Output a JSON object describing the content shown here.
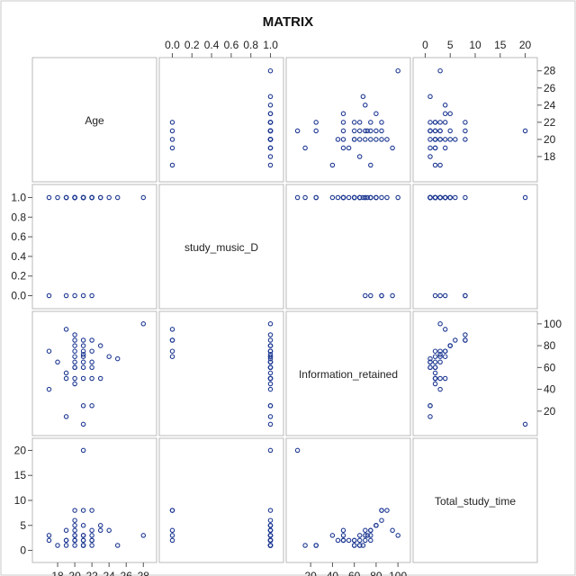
{
  "chart_data": {
    "type": "scatter",
    "subtype": "scatter-matrix",
    "title": "MATRIX",
    "marker_color": "#1f3a93",
    "frame_color": "#b9b9b9",
    "variables": [
      {
        "name": "Age",
        "range": [
          16,
          28.6
        ],
        "ticks": [
          18,
          20,
          22,
          24,
          26,
          28
        ]
      },
      {
        "name": "study_music_D",
        "range": [
          -0.05,
          1.05
        ],
        "ticks": [
          0.0,
          0.2,
          0.4,
          0.6,
          0.8,
          1.0
        ],
        "tick_labels": [
          "0.0",
          "0.2",
          "0.4",
          "0.6",
          "0.8",
          "1.0"
        ]
      },
      {
        "name": "Information_retained",
        "range": [
          5,
          104
        ],
        "ticks": [
          20,
          40,
          60,
          80,
          100
        ]
      },
      {
        "name": "Total_study_time",
        "range": [
          -0.8,
          20.8
        ],
        "ticks": [
          0,
          5,
          10,
          15,
          20
        ]
      }
    ],
    "axes": {
      "top": [
        1,
        3
      ],
      "bottom": [
        0,
        2
      ],
      "left": [
        1,
        3
      ],
      "right": [
        0,
        2
      ]
    },
    "observations": [
      [
        28,
        1,
        100,
        3
      ],
      [
        21,
        1,
        8,
        20
      ],
      [
        17,
        1,
        40,
        3
      ],
      [
        17,
        0,
        75,
        2
      ],
      [
        18,
        1,
        65,
        1
      ],
      [
        19,
        1,
        50,
        2
      ],
      [
        19,
        1,
        15,
        1
      ],
      [
        19,
        0,
        95,
        4
      ],
      [
        20,
        1,
        90,
        8
      ],
      [
        20,
        1,
        85,
        6
      ],
      [
        20,
        1,
        80,
        5
      ],
      [
        20,
        1,
        75,
        4
      ],
      [
        20,
        0,
        70,
        3
      ],
      [
        20,
        1,
        65,
        2
      ],
      [
        20,
        1,
        60,
        1
      ],
      [
        20,
        1,
        50,
        3
      ],
      [
        20,
        1,
        45,
        2
      ],
      [
        21,
        0,
        85,
        8
      ],
      [
        21,
        1,
        80,
        5
      ],
      [
        21,
        1,
        75,
        3
      ],
      [
        21,
        1,
        70,
        2
      ],
      [
        21,
        1,
        65,
        1
      ],
      [
        21,
        1,
        60,
        1
      ],
      [
        21,
        1,
        50,
        2
      ],
      [
        21,
        1,
        25,
        1
      ],
      [
        22,
        0,
        85,
        8
      ],
      [
        22,
        1,
        75,
        4
      ],
      [
        22,
        1,
        60,
        2
      ],
      [
        22,
        1,
        50,
        2
      ],
      [
        22,
        1,
        25,
        1
      ],
      [
        23,
        1,
        80,
        5
      ],
      [
        23,
        1,
        50,
        4
      ],
      [
        24,
        1,
        70,
        4
      ],
      [
        25,
        1,
        68,
        1
      ],
      [
        20,
        1,
        60,
        2
      ],
      [
        21,
        1,
        72,
        3
      ],
      [
        19,
        1,
        55,
        2
      ],
      [
        22,
        1,
        65,
        3
      ]
    ]
  }
}
